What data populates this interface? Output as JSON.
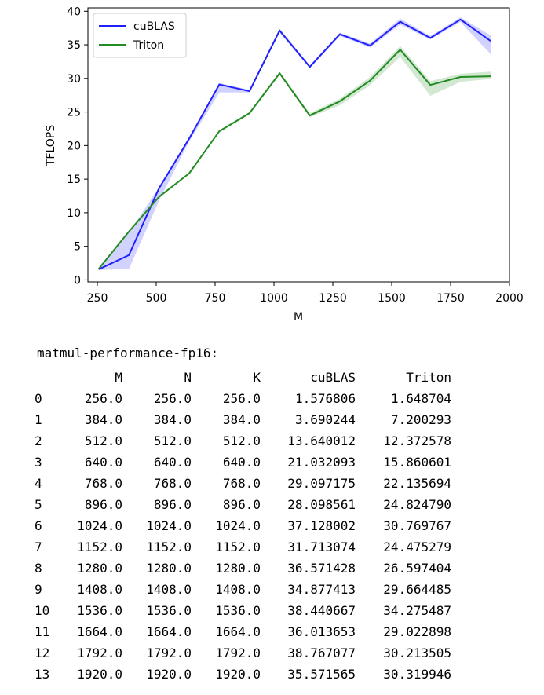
{
  "chart_data": {
    "type": "line",
    "xlabel": "M",
    "ylabel": "TFLOPS",
    "xlim": [
      210,
      2000
    ],
    "ylim": [
      -0.3,
      40.5
    ],
    "xticks": [
      250,
      500,
      750,
      1000,
      1250,
      1500,
      1750,
      2000
    ],
    "yticks": [
      0,
      5,
      10,
      15,
      20,
      25,
      30,
      35,
      40
    ],
    "grid": false,
    "legend_position": "top-left",
    "x": [
      256,
      384,
      512,
      640,
      768,
      896,
      1024,
      1152,
      1280,
      1408,
      1536,
      1664,
      1792,
      1920
    ],
    "series": [
      {
        "name": "cuBLAS",
        "color": "#1f1fff",
        "values": [
          1.576806,
          3.690244,
          13.640012,
          21.032093,
          29.097175,
          28.098561,
          37.128002,
          31.713074,
          36.571428,
          34.877413,
          38.440667,
          36.013653,
          38.767077,
          35.571565
        ],
        "band_low": [
          1.5,
          1.6,
          11.8,
          20.6,
          27.9,
          27.9,
          36.8,
          31.5,
          36.3,
          34.6,
          38.0,
          35.8,
          38.4,
          33.6
        ],
        "band_high": [
          1.7,
          7.0,
          13.8,
          21.3,
          29.3,
          28.3,
          37.4,
          31.9,
          36.8,
          35.2,
          38.9,
          36.3,
          39.1,
          36.4
        ]
      },
      {
        "name": "Triton",
        "color": "#228b22",
        "values": [
          1.648704,
          7.200293,
          12.372578,
          15.860601,
          22.135694,
          24.82479,
          30.769767,
          24.475279,
          26.597404,
          29.664485,
          34.275487,
          29.022898,
          30.213505,
          30.319946
        ],
        "band_low": [
          1.6,
          7.1,
          12.2,
          15.7,
          22.0,
          24.6,
          30.5,
          24.2,
          26.0,
          29.0,
          33.2,
          27.4,
          29.5,
          29.9
        ],
        "band_high": [
          1.7,
          7.3,
          12.5,
          16.0,
          22.3,
          25.0,
          31.0,
          24.8,
          27.0,
          30.2,
          34.8,
          29.6,
          30.7,
          31.0
        ]
      }
    ]
  },
  "output": {
    "title": "matmul-performance-fp16:",
    "headers": [
      "M",
      "N",
      "K",
      "cuBLAS",
      "Triton"
    ],
    "rows": [
      [
        "0",
        "256.0",
        "256.0",
        "256.0",
        "1.576806",
        "1.648704"
      ],
      [
        "1",
        "384.0",
        "384.0",
        "384.0",
        "3.690244",
        "7.200293"
      ],
      [
        "2",
        "512.0",
        "512.0",
        "512.0",
        "13.640012",
        "12.372578"
      ],
      [
        "3",
        "640.0",
        "640.0",
        "640.0",
        "21.032093",
        "15.860601"
      ],
      [
        "4",
        "768.0",
        "768.0",
        "768.0",
        "29.097175",
        "22.135694"
      ],
      [
        "5",
        "896.0",
        "896.0",
        "896.0",
        "28.098561",
        "24.824790"
      ],
      [
        "6",
        "1024.0",
        "1024.0",
        "1024.0",
        "37.128002",
        "30.769767"
      ],
      [
        "7",
        "1152.0",
        "1152.0",
        "1152.0",
        "31.713074",
        "24.475279"
      ],
      [
        "8",
        "1280.0",
        "1280.0",
        "1280.0",
        "36.571428",
        "26.597404"
      ],
      [
        "9",
        "1408.0",
        "1408.0",
        "1408.0",
        "34.877413",
        "29.664485"
      ],
      [
        "10",
        "1536.0",
        "1536.0",
        "1536.0",
        "38.440667",
        "34.275487"
      ],
      [
        "11",
        "1664.0",
        "1664.0",
        "1664.0",
        "36.013653",
        "29.022898"
      ],
      [
        "12",
        "1792.0",
        "1792.0",
        "1792.0",
        "38.767077",
        "30.213505"
      ],
      [
        "13",
        "1920.0",
        "1920.0",
        "1920.0",
        "35.571565",
        "30.319946"
      ]
    ]
  }
}
